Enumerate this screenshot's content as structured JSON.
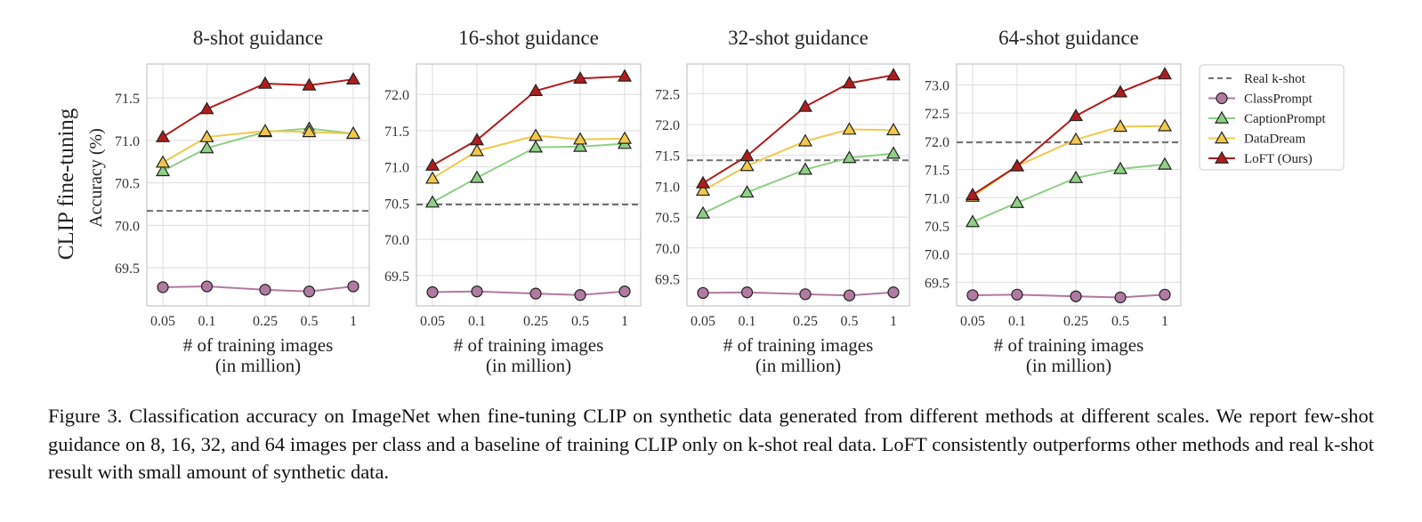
{
  "row_label": "CLIP fine-tuning",
  "legend": [
    "Real k-shot",
    "ClassPrompt",
    "CaptionPrompt",
    "DataDream",
    "LoFT (Ours)"
  ],
  "colors": {
    "real": "#707070",
    "classprompt": "#b07aa1",
    "captionprompt": "#8fcf86",
    "datadream": "#f1c84b",
    "loft": "#b01c1c",
    "grid": "#dddddd",
    "frame": "#bbbbbb"
  },
  "caption": "Figure 3.  Classification accuracy on ImageNet when fine-tuning CLIP on synthetic data generated from different methods at different scales. We report few-shot guidance on 8, 16, 32, and 64 images per class and a baseline of training CLIP only on k-shot real data. LoFT consistently outperforms other methods and real k-shot result with small amount of synthetic data.",
  "chart_data": [
    {
      "type": "line",
      "title": "8-shot guidance",
      "xlabel": "# of training images\n(in million)",
      "ylabel": "Accuracy (%)",
      "x": [
        0.05,
        0.1,
        0.25,
        0.5,
        1
      ],
      "x_tick_labels": [
        "0.05",
        "0.1",
        "0.25",
        "0.5",
        "1"
      ],
      "x_scale": "log",
      "ylim": [
        69.05,
        71.9
      ],
      "yticks": [
        "69.5",
        "70.0",
        "70.5",
        "71.0",
        "71.5"
      ],
      "real_kshot": 70.17,
      "series": [
        {
          "name": "ClassPrompt",
          "values": [
            69.27,
            69.28,
            69.24,
            69.22,
            69.28
          ]
        },
        {
          "name": "CaptionPrompt",
          "values": [
            70.64,
            70.91,
            71.1,
            71.14,
            71.08
          ]
        },
        {
          "name": "DataDream",
          "values": [
            70.74,
            71.04,
            71.11,
            71.1,
            71.08
          ]
        },
        {
          "name": "LoFT (Ours)",
          "values": [
            71.04,
            71.37,
            71.67,
            71.65,
            71.72
          ]
        }
      ]
    },
    {
      "type": "line",
      "title": "16-shot guidance",
      "xlabel": "# of training images\n(in million)",
      "ylabel": "",
      "x": [
        0.05,
        0.1,
        0.25,
        0.5,
        1
      ],
      "x_tick_labels": [
        "0.05",
        "0.1",
        "0.25",
        "0.5",
        "1"
      ],
      "x_scale": "log",
      "ylim": [
        69.08,
        72.42
      ],
      "yticks": [
        "69.5",
        "70.0",
        "70.5",
        "71.0",
        "71.5",
        "72.0"
      ],
      "real_kshot": 70.48,
      "series": [
        {
          "name": "ClassPrompt",
          "values": [
            69.27,
            69.28,
            69.25,
            69.23,
            69.28
          ]
        },
        {
          "name": "CaptionPrompt",
          "values": [
            70.51,
            70.85,
            71.27,
            71.28,
            71.32
          ]
        },
        {
          "name": "DataDream",
          "values": [
            70.84,
            71.22,
            71.43,
            71.38,
            71.39
          ]
        },
        {
          "name": "LoFT (Ours)",
          "values": [
            71.02,
            71.37,
            72.05,
            72.22,
            72.25
          ]
        }
      ]
    },
    {
      "type": "line",
      "title": "32-shot guidance",
      "xlabel": "# of training images\n(in million)",
      "ylabel": "",
      "x": [
        0.05,
        0.1,
        0.25,
        0.5,
        1
      ],
      "x_tick_labels": [
        "0.05",
        "0.1",
        "0.25",
        "0.5",
        "1"
      ],
      "x_scale": "log",
      "ylim": [
        69.06,
        72.98
      ],
      "yticks": [
        "69.5",
        "70.0",
        "70.5",
        "71.0",
        "71.5",
        "72.0",
        "72.5"
      ],
      "real_kshot": 71.42,
      "series": [
        {
          "name": "ClassPrompt",
          "values": [
            69.27,
            69.28,
            69.25,
            69.23,
            69.28
          ]
        },
        {
          "name": "CaptionPrompt",
          "values": [
            70.56,
            70.9,
            71.27,
            71.46,
            71.53
          ]
        },
        {
          "name": "DataDream",
          "values": [
            70.93,
            71.33,
            71.73,
            71.92,
            71.91
          ]
        },
        {
          "name": "LoFT (Ours)",
          "values": [
            71.05,
            71.49,
            72.29,
            72.67,
            72.8
          ]
        }
      ]
    },
    {
      "type": "line",
      "title": "64-shot guidance",
      "xlabel": "# of training images\n(in million)",
      "ylabel": "",
      "x": [
        0.05,
        0.1,
        0.25,
        0.5,
        1
      ],
      "x_tick_labels": [
        "0.05",
        "0.1",
        "0.25",
        "0.5",
        "1"
      ],
      "x_scale": "log",
      "ylim": [
        69.08,
        73.37
      ],
      "yticks": [
        "69.5",
        "70.0",
        "70.5",
        "71.0",
        "71.5",
        "72.0",
        "72.5",
        "73.0"
      ],
      "real_kshot": 71.98,
      "series": [
        {
          "name": "ClassPrompt",
          "values": [
            69.27,
            69.28,
            69.25,
            69.23,
            69.28
          ]
        },
        {
          "name": "CaptionPrompt",
          "values": [
            70.57,
            70.91,
            71.35,
            71.51,
            71.59
          ]
        },
        {
          "name": "DataDream",
          "values": [
            71.02,
            71.56,
            72.03,
            72.26,
            72.27
          ]
        },
        {
          "name": "LoFT (Ours)",
          "values": [
            71.05,
            71.56,
            72.45,
            72.87,
            73.19
          ]
        }
      ]
    }
  ]
}
